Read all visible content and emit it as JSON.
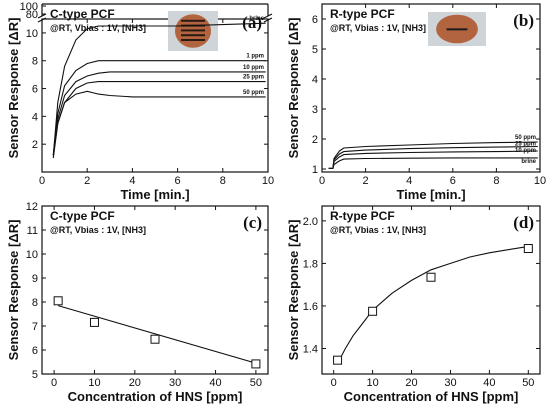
{
  "chart_data": [
    {
      "id": "a",
      "type": "line",
      "letter": "(a)",
      "title": "C-type PCF",
      "condition": "@RT, Vbias : 1V,  [NH3]",
      "xlabel": "Time [min.]",
      "ylabel": "Sensor Response [ΔR]",
      "xlim": [
        0,
        10
      ],
      "ylim": [
        0,
        11
      ],
      "break_ylim": [
        80,
        100
      ],
      "xticks": [
        "0",
        "2",
        "4",
        "6",
        "8",
        "10"
      ],
      "yticks": [
        "2",
        "4",
        "6",
        "8",
        "10"
      ],
      "break_yticks": [
        "80",
        "100"
      ],
      "inset": "sensor-photo",
      "series": [
        {
          "name": "brine",
          "x": [
            0.5,
            0.7,
            1.0,
            1.5,
            2.0,
            2.5,
            3.0,
            4,
            6,
            8,
            9.9
          ],
          "y": [
            1.2,
            5.0,
            7.6,
            9.5,
            10.3,
            10.5,
            10.5,
            10.5,
            10.5,
            10.6,
            10.7
          ]
        },
        {
          "name": "1 ppm",
          "x": [
            0.5,
            0.7,
            1.0,
            1.5,
            2.0,
            2.5,
            3.0,
            4,
            6,
            8,
            9.9
          ],
          "y": [
            1.2,
            4.2,
            6.2,
            7.3,
            7.8,
            8.0,
            8.0,
            8.0,
            8.0,
            8.0,
            8.0
          ]
        },
        {
          "name": "10 ppm",
          "x": [
            0.5,
            0.7,
            1.0,
            1.5,
            2.0,
            2.5,
            3.0,
            4,
            6,
            8,
            9.9
          ],
          "y": [
            1.2,
            3.8,
            5.5,
            6.5,
            6.9,
            7.1,
            7.2,
            7.2,
            7.2,
            7.2,
            7.2
          ]
        },
        {
          "name": "25 ppm",
          "x": [
            0.5,
            0.7,
            1.0,
            1.5,
            2.0,
            2.5,
            3.0,
            4,
            6,
            8,
            9.9
          ],
          "y": [
            1.2,
            3.5,
            5.0,
            6.0,
            6.4,
            6.5,
            6.5,
            6.5,
            6.5,
            6.5,
            6.5
          ]
        },
        {
          "name": "50 ppm",
          "x": [
            0.5,
            0.7,
            1.0,
            1.5,
            2.0,
            2.5,
            3.0,
            4,
            6,
            8,
            9.9
          ],
          "y": [
            1.0,
            3.5,
            5.0,
            5.6,
            5.8,
            5.6,
            5.5,
            5.4,
            5.4,
            5.4,
            5.4
          ]
        }
      ]
    },
    {
      "id": "b",
      "type": "line",
      "letter": "(b)",
      "title": "R-type PCF",
      "condition": "@RT, Vbias : 1V,  [NH3]",
      "xlabel": "Time [min.]",
      "ylabel": "Sensor Response [ΔR]",
      "xlim": [
        0,
        10
      ],
      "ylim": [
        0.9,
        6.5
      ],
      "xticks": [
        "0",
        "2",
        "4",
        "6",
        "8",
        "10"
      ],
      "yticks": [
        "1",
        "2",
        "3",
        "4",
        "5",
        "6"
      ],
      "inset": "sensor-photo",
      "series": [
        {
          "name": "50 ppm",
          "x": [
            0.3,
            0.5,
            0.55,
            0.8,
            1.0,
            2,
            4,
            6,
            8,
            9.9
          ],
          "y": [
            1.02,
            1.02,
            1.35,
            1.6,
            1.7,
            1.75,
            1.8,
            1.85,
            1.88,
            1.9
          ]
        },
        {
          "name": "25 ppm",
          "x": [
            0.3,
            0.5,
            0.55,
            0.8,
            1.0,
            2,
            4,
            6,
            8,
            9.9
          ],
          "y": [
            1.02,
            1.02,
            1.3,
            1.5,
            1.58,
            1.63,
            1.68,
            1.71,
            1.73,
            1.75
          ]
        },
        {
          "name": "10 ppm",
          "x": [
            0.3,
            0.5,
            0.55,
            0.8,
            1.0,
            2,
            4,
            6,
            8,
            9.9
          ],
          "y": [
            1.02,
            1.02,
            1.25,
            1.4,
            1.48,
            1.52,
            1.55,
            1.57,
            1.58,
            1.6
          ]
        },
        {
          "name": "brine",
          "x": [
            0.3,
            0.5,
            0.55,
            0.8,
            1.0,
            2,
            4,
            6,
            8,
            9.9
          ],
          "y": [
            1.02,
            1.02,
            1.15,
            1.27,
            1.33,
            1.35,
            1.36,
            1.37,
            1.37,
            1.37
          ]
        }
      ]
    },
    {
      "id": "c",
      "type": "scatter",
      "letter": "(c)",
      "title": "C-type PCF",
      "condition": "@RT, Vbias : 1V,  [NH3]",
      "xlabel": "Concentration of HNS [ppm]",
      "ylabel": "Sensor Response [ΔR]",
      "xlim": [
        -3,
        53
      ],
      "ylim": [
        5,
        12
      ],
      "xticks": [
        "0",
        "10",
        "20",
        "30",
        "40",
        "50"
      ],
      "yticks": [
        "5",
        "6",
        "7",
        "8",
        "9",
        "10",
        "11",
        "12"
      ],
      "points": {
        "x": [
          1,
          10,
          25,
          50
        ],
        "y": [
          8.05,
          7.15,
          6.45,
          5.42
        ]
      },
      "fit": {
        "x": [
          1,
          50
        ],
        "y": [
          7.85,
          5.45
        ]
      }
    },
    {
      "id": "d",
      "type": "scatter",
      "letter": "(d)",
      "title": "R-type PCF",
      "condition": "@RT, Vbias : 1V,  [NH3]",
      "xlabel": "Concentration of HNS [ppm]",
      "ylabel": "Sensor Response [ΔR]",
      "xlim": [
        -3,
        53
      ],
      "ylim": [
        1.28,
        2.07
      ],
      "xticks": [
        "0",
        "10",
        "20",
        "30",
        "40",
        "50"
      ],
      "yticks": [
        "1.4",
        "1.6",
        "1.8",
        "2.0"
      ],
      "points": {
        "x": [
          1,
          10,
          25,
          50
        ],
        "y": [
          1.345,
          1.575,
          1.735,
          1.87
        ]
      },
      "fit": {
        "x": [
          1,
          3,
          5,
          7.5,
          10,
          15,
          20,
          25,
          30,
          35,
          40,
          45,
          50
        ],
        "y": [
          1.33,
          1.4,
          1.46,
          1.52,
          1.58,
          1.66,
          1.72,
          1.77,
          1.8,
          1.83,
          1.85,
          1.865,
          1.88
        ]
      }
    }
  ]
}
